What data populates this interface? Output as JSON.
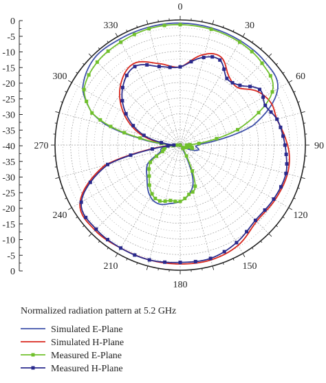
{
  "chart_data": {
    "type": "polar-line",
    "title": "Normalized radiation pattern at 5.2 GHz",
    "angular_unit": "degrees",
    "angular_direction": "clockwise",
    "zero_angle_location": "top",
    "angular_ticks": [
      0,
      30,
      60,
      90,
      120,
      150,
      180,
      210,
      240,
      270,
      300,
      330
    ],
    "radial_range": [
      -40,
      0
    ],
    "radial_tick_labels": [
      "0",
      "-5",
      "-10",
      "-15",
      "-20",
      "-25",
      "-30",
      "-35",
      "-40",
      "-35",
      "-30",
      "-25",
      "-20",
      "-15",
      "-10",
      "-5",
      "0"
    ],
    "grid": true,
    "legend_placement": "bottom-left",
    "series": [
      {
        "name": "Simulated E-Plane",
        "color": "#3d4fa8",
        "marker": "none",
        "points": [
          [
            0,
            -1
          ],
          [
            30,
            -1.5
          ],
          [
            45,
            -2
          ],
          [
            60,
            -4
          ],
          [
            75,
            -16
          ],
          [
            85,
            -31
          ],
          [
            90,
            -34
          ],
          [
            95,
            -35
          ],
          [
            105,
            -34
          ],
          [
            120,
            -38
          ],
          [
            135,
            -39
          ],
          [
            150,
            -38
          ],
          [
            160,
            -28
          ],
          [
            170,
            -24
          ],
          [
            180,
            -22
          ],
          [
            190,
            -21
          ],
          [
            200,
            -20
          ],
          [
            210,
            -21
          ],
          [
            225,
            -25
          ],
          [
            240,
            -28
          ],
          [
            250,
            -33
          ],
          [
            260,
            -34
          ],
          [
            270,
            -38
          ],
          [
            280,
            -26
          ],
          [
            285,
            -16
          ],
          [
            290,
            -10
          ],
          [
            300,
            -4
          ],
          [
            315,
            -1
          ],
          [
            330,
            -1
          ],
          [
            345,
            -1
          ],
          [
            360,
            -1
          ]
        ]
      },
      {
        "name": "Simulated H-Plane",
        "color": "#d8261c",
        "marker": "none",
        "points": [
          [
            0,
            -15
          ],
          [
            15,
            -10
          ],
          [
            25,
            -9
          ],
          [
            35,
            -13
          ],
          [
            45,
            -14
          ],
          [
            55,
            -10
          ],
          [
            65,
            -8
          ],
          [
            75,
            -8
          ],
          [
            85,
            -6.5
          ],
          [
            95,
            -5
          ],
          [
            105,
            -4.5
          ],
          [
            120,
            -5
          ],
          [
            135,
            -5.5
          ],
          [
            150,
            -3
          ],
          [
            165,
            -2
          ],
          [
            180,
            -2
          ],
          [
            195,
            -2
          ],
          [
            210,
            -2
          ],
          [
            225,
            -1.5
          ],
          [
            240,
            -3
          ],
          [
            255,
            -15
          ],
          [
            262,
            -30
          ],
          [
            270,
            -37
          ],
          [
            285,
            -27
          ],
          [
            300,
            -19
          ],
          [
            315,
            -13
          ],
          [
            330,
            -10
          ],
          [
            345,
            -13
          ],
          [
            360,
            -15
          ]
        ]
      },
      {
        "name": "Measured E-Plane",
        "color": "#70c02c",
        "marker": "square",
        "points": [
          [
            0,
            -1.5
          ],
          [
            30,
            -2
          ],
          [
            45,
            -3
          ],
          [
            60,
            -6
          ],
          [
            75,
            -21
          ],
          [
            85,
            -34
          ],
          [
            90,
            -38
          ],
          [
            95,
            -37
          ],
          [
            105,
            -36
          ],
          [
            120,
            -40
          ],
          [
            135,
            -40
          ],
          [
            150,
            -36
          ],
          [
            160,
            -26
          ],
          [
            170,
            -24
          ],
          [
            180,
            -22
          ],
          [
            190,
            -22
          ],
          [
            200,
            -21
          ],
          [
            210,
            -22
          ],
          [
            225,
            -26
          ],
          [
            240,
            -29
          ],
          [
            250,
            -34
          ],
          [
            260,
            -35
          ],
          [
            270,
            -39
          ],
          [
            280,
            -27
          ],
          [
            285,
            -17
          ],
          [
            290,
            -10
          ],
          [
            300,
            -4.5
          ],
          [
            315,
            -2.5
          ],
          [
            330,
            -2
          ],
          [
            345,
            -1.5
          ],
          [
            360,
            -1.5
          ]
        ]
      },
      {
        "name": "Measured H-Plane",
        "color": "#2a2a8c",
        "marker": "square",
        "points": [
          [
            0,
            -15
          ],
          [
            15,
            -11
          ],
          [
            25,
            -10
          ],
          [
            35,
            -14
          ],
          [
            45,
            -13
          ],
          [
            55,
            -9
          ],
          [
            65,
            -10
          ],
          [
            75,
            -8
          ],
          [
            85,
            -7
          ],
          [
            95,
            -6
          ],
          [
            105,
            -5
          ],
          [
            120,
            -5.5
          ],
          [
            135,
            -6
          ],
          [
            150,
            -4
          ],
          [
            165,
            -2.5
          ],
          [
            180,
            -2.5
          ],
          [
            195,
            -2
          ],
          [
            210,
            -2
          ],
          [
            225,
            -2
          ],
          [
            240,
            -3.5
          ],
          [
            255,
            -16
          ],
          [
            262,
            -31
          ],
          [
            270,
            -38
          ],
          [
            285,
            -28
          ],
          [
            300,
            -20
          ],
          [
            315,
            -14
          ],
          [
            330,
            -11
          ],
          [
            345,
            -14
          ],
          [
            360,
            -15
          ]
        ]
      }
    ]
  }
}
